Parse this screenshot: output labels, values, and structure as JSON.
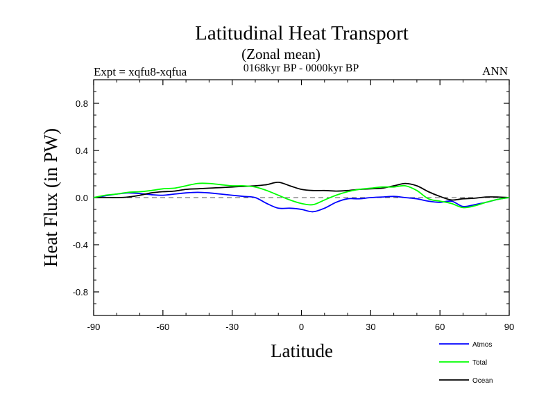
{
  "chart_data": {
    "type": "line",
    "title": "Latitudinal Heat Transport",
    "subtitle": "(Zonal mean)",
    "period": "0168kyr BP - 0000kyr BP",
    "experiment": "Expt = xqfu8-xqfua",
    "season": "ANN",
    "xlabel": "Latitude",
    "ylabel": "Heat Flux (in PW)",
    "xlim": [
      -90,
      90
    ],
    "ylim": [
      -1.0,
      1.0
    ],
    "xticks": [
      -90,
      -60,
      -30,
      0,
      30,
      60,
      90
    ],
    "xtick_labels": [
      "-90",
      "-60",
      "-30",
      "0",
      "30",
      "60",
      "90"
    ],
    "yticks": [
      -0.8,
      -0.4,
      0.0,
      0.4,
      0.8
    ],
    "ytick_labels": [
      "-0.8",
      "-0.4",
      "0.0",
      "0.4",
      "0.8"
    ],
    "zero_line": "dashed",
    "series": [
      {
        "name": "Atmos",
        "color": "#0000ff",
        "x": [
          -90,
          -85,
          -80,
          -75,
          -70,
          -65,
          -60,
          -55,
          -50,
          -45,
          -40,
          -35,
          -30,
          -25,
          -20,
          -15,
          -10,
          -5,
          0,
          5,
          10,
          15,
          20,
          25,
          30,
          35,
          40,
          45,
          50,
          55,
          60,
          65,
          70,
          75,
          80,
          85,
          90
        ],
        "y": [
          0.0,
          0.015,
          0.03,
          0.04,
          0.035,
          0.025,
          0.02,
          0.03,
          0.04,
          0.045,
          0.04,
          0.03,
          0.02,
          0.01,
          0.0,
          -0.05,
          -0.09,
          -0.09,
          -0.1,
          -0.12,
          -0.09,
          -0.04,
          -0.01,
          -0.01,
          0.0,
          0.005,
          0.01,
          0.0,
          -0.01,
          -0.03,
          -0.04,
          -0.03,
          -0.075,
          -0.06,
          -0.04,
          -0.015,
          0.0
        ]
      },
      {
        "name": "Total",
        "color": "#00ff00",
        "x": [
          -90,
          -85,
          -80,
          -75,
          -70,
          -65,
          -60,
          -55,
          -50,
          -45,
          -40,
          -35,
          -30,
          -25,
          -20,
          -15,
          -10,
          -5,
          0,
          5,
          10,
          15,
          20,
          25,
          30,
          35,
          40,
          45,
          50,
          55,
          60,
          65,
          70,
          75,
          80,
          85,
          90
        ],
        "y": [
          0.0,
          0.02,
          0.03,
          0.045,
          0.05,
          0.06,
          0.075,
          0.08,
          0.1,
          0.12,
          0.12,
          0.11,
          0.1,
          0.1,
          0.09,
          0.06,
          0.02,
          -0.02,
          -0.05,
          -0.06,
          -0.02,
          0.02,
          0.05,
          0.07,
          0.08,
          0.09,
          0.09,
          0.1,
          0.06,
          -0.01,
          -0.03,
          -0.05,
          -0.085,
          -0.07,
          -0.04,
          -0.015,
          0.0
        ]
      },
      {
        "name": "Ocean",
        "color": "#000000",
        "x": [
          -90,
          -85,
          -80,
          -75,
          -70,
          -65,
          -60,
          -55,
          -50,
          -45,
          -40,
          -35,
          -30,
          -25,
          -20,
          -15,
          -10,
          -5,
          0,
          5,
          10,
          15,
          20,
          25,
          30,
          35,
          40,
          45,
          50,
          55,
          60,
          65,
          70,
          75,
          80,
          85,
          90
        ],
        "y": [
          0.0,
          0.0,
          0.0,
          0.005,
          0.02,
          0.04,
          0.05,
          0.055,
          0.07,
          0.075,
          0.08,
          0.085,
          0.09,
          0.095,
          0.1,
          0.11,
          0.13,
          0.1,
          0.07,
          0.06,
          0.06,
          0.055,
          0.06,
          0.07,
          0.075,
          0.08,
          0.1,
          0.12,
          0.1,
          0.05,
          0.01,
          -0.02,
          -0.01,
          -0.005,
          0.005,
          0.005,
          0.0
        ]
      }
    ]
  }
}
